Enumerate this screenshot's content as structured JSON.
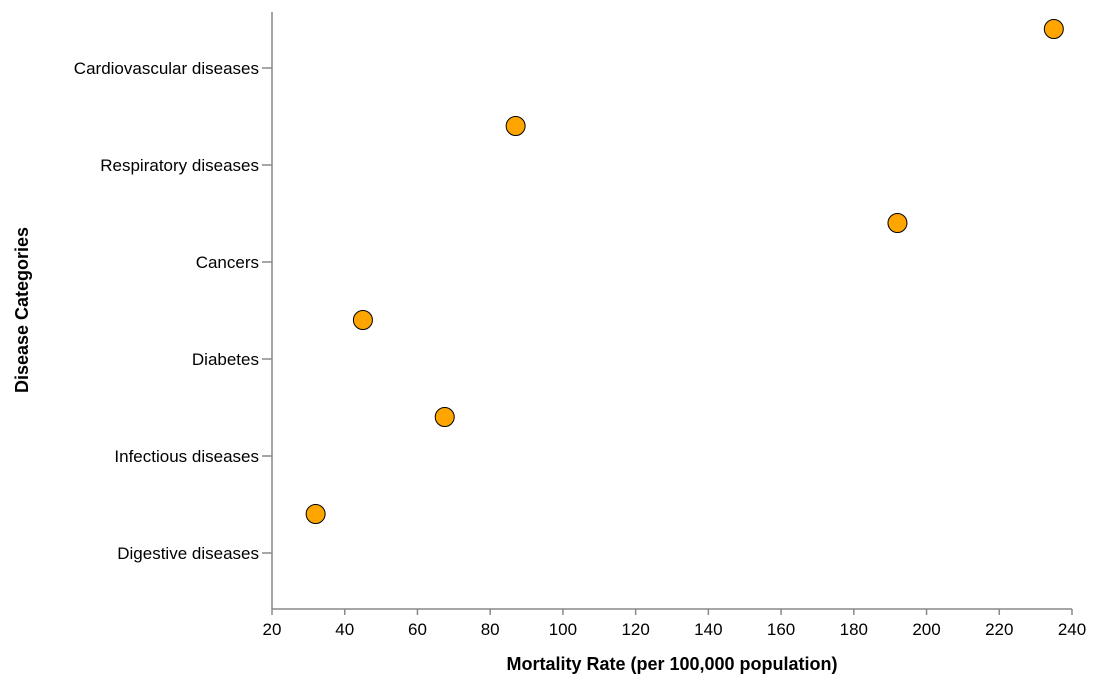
{
  "chart_data": {
    "type": "scatter",
    "title": "",
    "xlabel": "Mortality Rate (per 100,000 population)",
    "ylabel": "Disease Categories",
    "xlim": [
      20,
      240
    ],
    "x_ticks": [
      20,
      40,
      60,
      80,
      100,
      120,
      140,
      160,
      180,
      200,
      220,
      240
    ],
    "categories": [
      "Cardiovascular diseases",
      "Respiratory diseases",
      "Cancers",
      "Diabetes",
      "Infectious diseases",
      "Digestive diseases"
    ],
    "points": [
      {
        "category": "Cardiovascular diseases",
        "x": 235
      },
      {
        "category": "Respiratory diseases",
        "x": 87
      },
      {
        "category": "Cancers",
        "x": 192
      },
      {
        "category": "Diabetes",
        "x": 45
      },
      {
        "category": "Infectious diseases",
        "x": 67.5
      },
      {
        "category": "Digestive diseases",
        "x": 32
      }
    ],
    "marker_color": "#FFA500",
    "marker_edge_color": "#000000",
    "grid": false,
    "legend": "none"
  }
}
